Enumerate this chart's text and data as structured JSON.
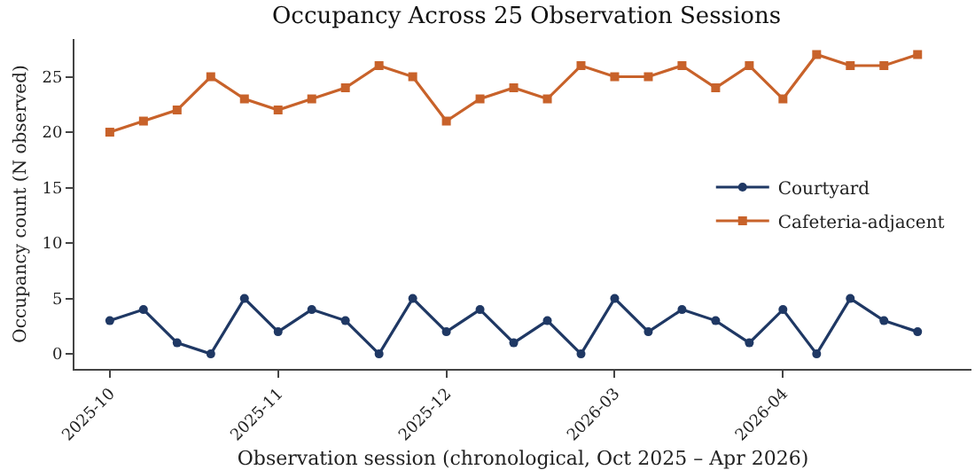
{
  "chart_data": {
    "type": "line",
    "title": "Occupancy Across 25 Observation Sessions",
    "xlabel": "Observation session (chronological, Oct 2025 – Apr 2026)",
    "ylabel": "Occupancy count (N observed)",
    "categories": [
      "2025-10",
      null,
      null,
      null,
      null,
      "2025-11",
      null,
      null,
      null,
      null,
      "2025-12",
      null,
      null,
      null,
      null,
      "2026-03",
      null,
      null,
      null,
      null,
      "2026-04",
      null,
      null,
      null,
      null
    ],
    "series": [
      {
        "name": "Courtyard",
        "color": "#1f3864",
        "marker": "circle",
        "values": [
          3,
          4,
          1,
          0,
          5,
          2,
          4,
          3,
          0,
          5,
          2,
          4,
          1,
          3,
          0,
          5,
          2,
          4,
          3,
          1,
          4,
          0,
          5,
          3,
          2
        ]
      },
      {
        "name": "Cafeteria-adjacent",
        "color": "#c8622a",
        "marker": "square",
        "values": [
          20,
          21,
          22,
          25,
          23,
          22,
          23,
          24,
          26,
          25,
          21,
          23,
          24,
          23,
          26,
          25,
          25,
          26,
          24,
          26,
          23,
          27,
          26,
          26,
          27
        ]
      }
    ],
    "ylim": [
      -1.35,
      28.4
    ],
    "yticks": [
      0,
      5,
      10,
      15,
      20,
      25
    ],
    "legend": "right",
    "line_style": "solid"
  }
}
